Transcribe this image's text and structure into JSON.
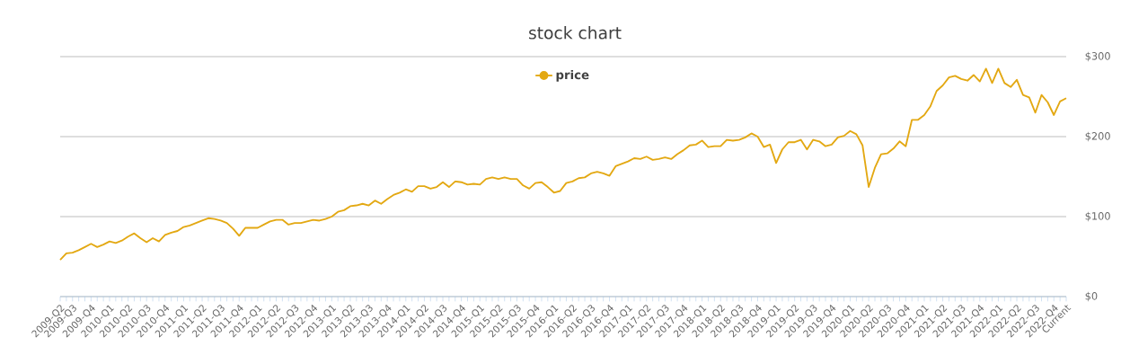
{
  "chart_data": {
    "type": "line",
    "title": "stock chart",
    "categories": [
      "2009-Q2",
      null,
      "2009-Q3",
      null,
      null,
      "2009-Q4",
      null,
      null,
      "2010-Q1",
      null,
      null,
      "2010-Q2",
      null,
      null,
      "2010-Q3",
      null,
      null,
      "2010-Q4",
      null,
      null,
      "2011-Q1",
      null,
      null,
      "2011-Q2",
      null,
      null,
      "2011-Q3",
      null,
      null,
      "2011-Q4",
      null,
      null,
      "2012-Q1",
      null,
      null,
      "2012-Q2",
      null,
      null,
      "2012-Q3",
      null,
      null,
      "2012-Q4",
      null,
      null,
      "2013-Q1",
      null,
      null,
      "2013-Q2",
      null,
      null,
      "2013-Q3",
      null,
      null,
      "2013-Q4",
      null,
      null,
      "2014-Q1",
      null,
      null,
      "2014-Q2",
      null,
      null,
      "2014-Q3",
      null,
      null,
      "2014-Q4",
      null,
      null,
      "2015-Q1",
      null,
      null,
      "2015-Q2",
      null,
      null,
      "2015-Q3",
      null,
      null,
      "2015-Q4",
      null,
      null,
      "2016-Q1",
      null,
      null,
      "2016-Q2",
      null,
      null,
      "2016-Q3",
      null,
      null,
      "2016-Q4",
      null,
      null,
      "2017-Q1",
      null,
      null,
      "2017-Q2",
      null,
      null,
      "2017-Q3",
      null,
      null,
      "2017-Q4",
      null,
      null,
      "2018-Q1",
      null,
      null,
      "2018-Q2",
      null,
      null,
      "2018-Q3",
      null,
      null,
      "2018-Q4",
      null,
      null,
      "2019-Q1",
      null,
      null,
      "2019-Q2",
      null,
      null,
      "2019-Q3",
      null,
      null,
      "2019-Q4",
      null,
      null,
      "2020-Q1",
      null,
      null,
      "2020-Q2",
      null,
      null,
      "2020-Q3",
      null,
      null,
      "2020-Q4",
      null,
      null,
      "2021-Q1",
      null,
      null,
      "2021-Q2",
      null,
      null,
      "2021-Q3",
      null,
      null,
      "2021-Q4",
      null,
      null,
      "2022-Q1",
      null,
      null,
      "2022-Q2",
      null,
      null,
      "2022-Q3",
      null,
      null,
      "2022-Q4",
      null,
      "Current"
    ],
    "series": [
      {
        "name": "price",
        "color": "#e3a812",
        "values": [
          46,
          54,
          55,
          58,
          62,
          66,
          62,
          65,
          69,
          67,
          70,
          75,
          79,
          73,
          68,
          73,
          69,
          77,
          80,
          82,
          87,
          89,
          92,
          95,
          98,
          97,
          95,
          92,
          85,
          76,
          86,
          86,
          86,
          90,
          94,
          96,
          96,
          90,
          92,
          92,
          94,
          96,
          95,
          97,
          100,
          106,
          108,
          113,
          114,
          116,
          114,
          120,
          116,
          122,
          127,
          130,
          134,
          131,
          138,
          138,
          135,
          137,
          143,
          137,
          144,
          143,
          140,
          141,
          140,
          147,
          149,
          147,
          149,
          147,
          147,
          139,
          135,
          142,
          143,
          137,
          130,
          132,
          142,
          144,
          148,
          149,
          154,
          156,
          154,
          151,
          163,
          166,
          169,
          173,
          172,
          175,
          171,
          172,
          174,
          172,
          178,
          183,
          189,
          190,
          195,
          187,
          188,
          188,
          196,
          195,
          196,
          199,
          204,
          200,
          187,
          190,
          167,
          184,
          193,
          193,
          196,
          184,
          196,
          194,
          188,
          190,
          199,
          201,
          207,
          203,
          189,
          137,
          161,
          178,
          179,
          185,
          194,
          188,
          221,
          221,
          227,
          238,
          257,
          264,
          274,
          276,
          272,
          270,
          277,
          269,
          285,
          267,
          285,
          267,
          262,
          271,
          252,
          249,
          230,
          252,
          243,
          227,
          244,
          248
        ]
      }
    ],
    "ylim": [
      0,
      300
    ],
    "yticks": [
      {
        "value": 0,
        "label": "$0"
      },
      {
        "value": 100,
        "label": "$100"
      },
      {
        "value": 200,
        "label": "$200"
      },
      {
        "value": 300,
        "label": "$300"
      }
    ],
    "grid": "y",
    "legend": "top"
  }
}
